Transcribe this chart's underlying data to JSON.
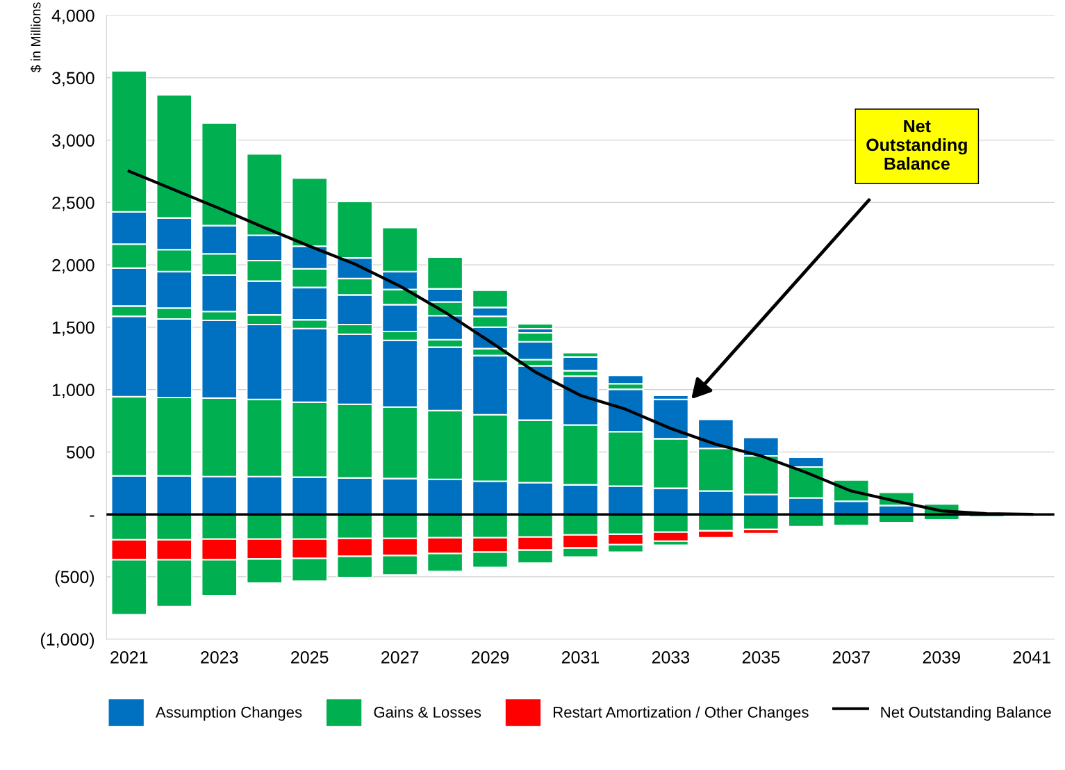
{
  "chart_data": {
    "type": "bar",
    "stacked": true,
    "ylabel": "$ in Millions",
    "categories": [
      "2021",
      null,
      "2023",
      null,
      "2025",
      null,
      "2027",
      null,
      "2029",
      null,
      "2031",
      null,
      "2033",
      null,
      "2035",
      null,
      "2037",
      null,
      "2039",
      null,
      "2041"
    ],
    "series": [
      {
        "name": "Assumption Changes",
        "color": "#0070c0",
        "values": [
          309,
          309,
          303,
          303,
          298,
          292,
          287,
          281,
          265,
          254,
          237,
          226,
          209,
          187,
          160,
          132,
          105,
          71,
          null,
          null,
          null
        ]
      },
      {
        "name": "Gains & Losses",
        "color": "#00b050",
        "values": [
          634,
          628,
          629,
          618,
          601,
          590,
          573,
          551,
          534,
          501,
          480,
          436,
          397,
          342,
          309,
          248,
          171,
          105,
          83,
          null,
          null
        ]
      },
      {
        "color": "#0070c0",
        "values": [
          645,
          629,
          623,
          601,
          590,
          562,
          535,
          508,
          474,
          436,
          391,
          341,
          315,
          232,
          148,
          78,
          null,
          null,
          null,
          null,
          null
        ]
      },
      {
        "color": "#00b050",
        "values": [
          82,
          88,
          71,
          77,
          71,
          78,
          71,
          60,
          56,
          49,
          44,
          44,
          null,
          null,
          null,
          null,
          null,
          null,
          null,
          null,
          null
        ]
      },
      {
        "color": "#0070c0",
        "values": [
          304,
          292,
          292,
          270,
          259,
          237,
          215,
          193,
          171,
          144,
          110,
          67,
          33,
          null,
          null,
          null,
          null,
          null,
          null,
          null,
          null
        ]
      },
      {
        "color": "#00b050",
        "values": [
          193,
          176,
          171,
          165,
          149,
          132,
          122,
          110,
          88,
          71,
          34,
          null,
          null,
          null,
          null,
          null,
          null,
          null,
          null,
          null,
          null
        ]
      },
      {
        "color": "#0070c0",
        "values": [
          258,
          254,
          226,
          204,
          182,
          165,
          143,
          105,
          71,
          33,
          null,
          null,
          null,
          null,
          null,
          null,
          null,
          null,
          null,
          null,
          null
        ]
      },
      {
        "color": "#00b050",
        "values": [
          1130,
          987,
          822,
          651,
          546,
          452,
          353,
          254,
          138,
          39,
          null,
          null,
          null,
          null,
          null,
          null,
          null,
          null,
          null,
          null,
          null
        ]
      },
      {
        "color": "#00b050",
        "values": [
          -204,
          -204,
          -198,
          -198,
          -198,
          -193,
          -193,
          -187,
          -187,
          -182,
          -165,
          -160,
          -143,
          -132,
          -121,
          -99,
          -88,
          -66,
          -44,
          -20,
          null
        ]
      },
      {
        "name": "Restart Amortization / Other Changes",
        "color": "#ff0000",
        "values": [
          -160,
          -160,
          -166,
          -160,
          -155,
          -143,
          -137,
          -127,
          -116,
          -105,
          -105,
          -83,
          -72,
          -55,
          -33,
          null,
          null,
          null,
          null,
          null,
          null
        ]
      },
      {
        "color": "#00b050",
        "values": [
          -441,
          -375,
          -287,
          -193,
          -182,
          -171,
          -155,
          -144,
          -122,
          -104,
          -72,
          -60,
          -33,
          null,
          null,
          null,
          null,
          null,
          null,
          null,
          null
        ]
      },
      {
        "name": "Net Outstanding Balance",
        "type": "line",
        "color": "#000000",
        "values": [
          2751,
          2602,
          2453,
          2299,
          2150,
          2007,
          1830,
          1620,
          1384,
          1141,
          954,
          843,
          689,
          562,
          469,
          336,
          187,
          105,
          28,
          6,
          0
        ]
      }
    ],
    "ylim": [
      -1000,
      4000
    ],
    "yticks": [
      {
        "value": -1000,
        "label": "(1,000)"
      },
      {
        "value": -500,
        "label": "(500)"
      },
      {
        "value": 0,
        "label": "-"
      },
      {
        "value": 500,
        "label": "500"
      },
      {
        "value": 1000,
        "label": "1,000"
      },
      {
        "value": 1500,
        "label": "1,500"
      },
      {
        "value": 2000,
        "label": "2,000"
      },
      {
        "value": 2500,
        "label": "2,500"
      },
      {
        "value": 3000,
        "label": "3,000"
      },
      {
        "value": 3500,
        "label": "3,500"
      },
      {
        "value": 4000,
        "label": "4,000"
      }
    ],
    "ref_lines": [
      {
        "axis": "y",
        "value": 0,
        "color": "#000000"
      }
    ],
    "annotations": [
      "Net\nOutstanding\nBalance"
    ],
    "grid": "y",
    "legend": "bottom"
  }
}
